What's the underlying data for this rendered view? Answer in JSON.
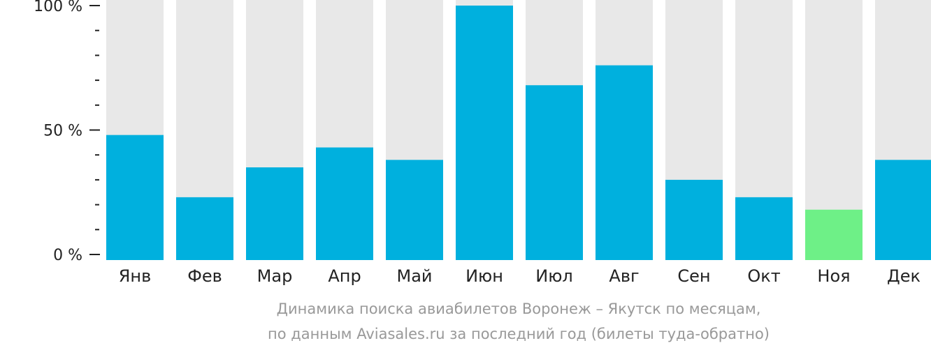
{
  "chart_data": {
    "type": "bar",
    "categories": [
      "Янв",
      "Фев",
      "Мар",
      "Апр",
      "Май",
      "Июн",
      "Июл",
      "Авг",
      "Сен",
      "Окт",
      "Ноя",
      "Дек"
    ],
    "values": [
      48,
      23,
      35,
      43,
      38,
      100,
      68,
      76,
      30,
      23,
      18,
      38
    ],
    "highlight_index": 10,
    "ylim": [
      0,
      100
    ],
    "yticks": [
      {
        "value": 100,
        "label": "100 %"
      },
      {
        "value": 50,
        "label": "50 %"
      },
      {
        "value": 0,
        "label": "0 %"
      }
    ],
    "minor_tick_step": 10,
    "grid": false,
    "colors": {
      "bar": "#00b0de",
      "highlight": "#6ef087",
      "background_bar": "#e8e8e8",
      "axis": "#222222",
      "label": "#222222"
    }
  },
  "caption": {
    "line1": "Динамика поиска авиабилетов Воронеж – Якутск по месяцам,",
    "line2": "по данным Aviasales.ru за последний год (билеты туда-обратно)",
    "color": "#999999"
  }
}
